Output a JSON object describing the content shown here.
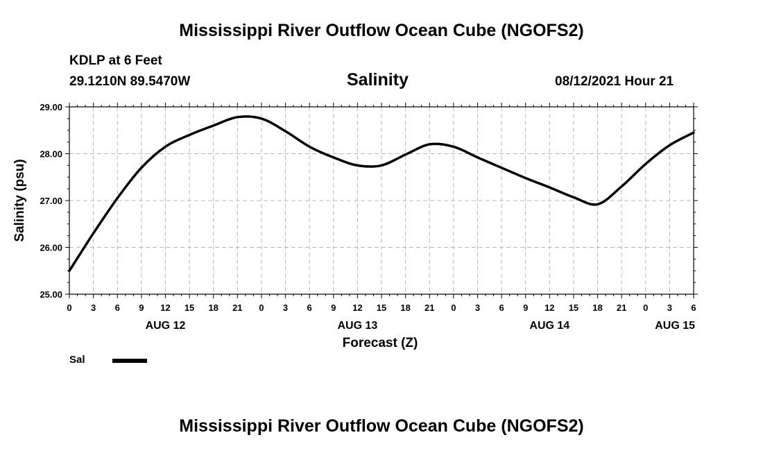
{
  "header": {
    "title": "Mississippi River Outflow Ocean Cube (NGOFS2)",
    "station": "KDLP at 6 Feet",
    "coords": "29.1210N  89.5470W",
    "chart_title": "Salinity",
    "timestamp": "08/12/2021 Hour 21"
  },
  "footer": {
    "title": "Mississippi River Outflow Ocean Cube (NGOFS2)"
  },
  "legend": {
    "label": "Sal"
  },
  "chart_data": {
    "type": "line",
    "title": "Salinity",
    "xlabel": "Forecast (Z)",
    "ylabel": "Salinity (psu)",
    "ylim": [
      25.0,
      29.0
    ],
    "xlim": [
      0,
      78
    ],
    "y_ticks": [
      25.0,
      26.0,
      27.0,
      28.0,
      29.0
    ],
    "y_tick_labels": [
      "25.00",
      "26.00",
      "27.00",
      "28.00",
      "29.00"
    ],
    "x_tick_labels": [
      "0",
      "3",
      "6",
      "9",
      "12",
      "15",
      "18",
      "21",
      "0",
      "3",
      "6",
      "9",
      "12",
      "15",
      "18",
      "21",
      "0",
      "3",
      "6",
      "9",
      "12",
      "15",
      "18",
      "21",
      "0",
      "3",
      "6"
    ],
    "day_labels": [
      {
        "label": "AUG 12",
        "hour": 12
      },
      {
        "label": "AUG 13",
        "hour": 36
      },
      {
        "label": "AUG 14",
        "hour": 60
      },
      {
        "label": "AUG 15",
        "hour": 78
      }
    ],
    "grid": true,
    "series": [
      {
        "name": "Sal",
        "color": "#000000",
        "x": [
          0,
          3,
          6,
          9,
          12,
          15,
          18,
          21,
          24,
          27,
          30,
          33,
          36,
          39,
          42,
          45,
          48,
          51,
          54,
          57,
          60,
          63,
          66,
          69,
          72,
          75,
          78
        ],
        "values": [
          25.5,
          26.3,
          27.05,
          27.7,
          28.15,
          28.4,
          28.6,
          28.78,
          28.75,
          28.48,
          28.15,
          27.92,
          27.75,
          27.75,
          27.98,
          28.2,
          28.15,
          27.92,
          27.7,
          27.48,
          27.28,
          27.07,
          26.92,
          27.3,
          27.78,
          28.18,
          28.45
        ]
      }
    ]
  }
}
